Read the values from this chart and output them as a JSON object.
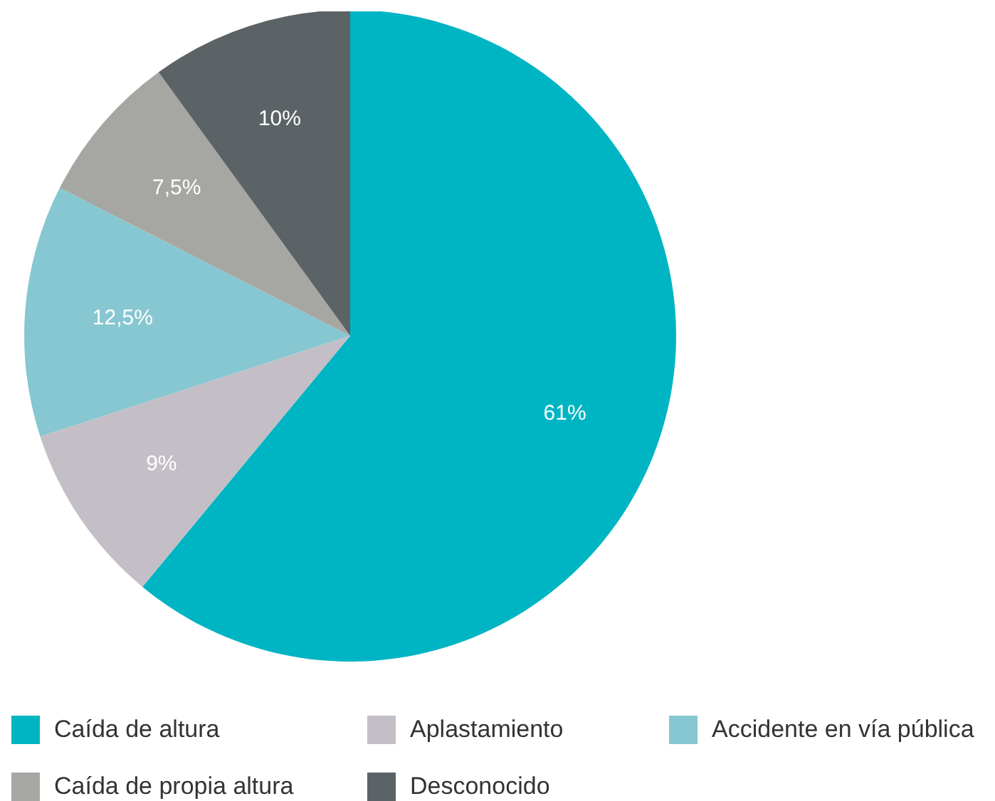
{
  "chart_data": {
    "type": "pie",
    "categories": [
      "Caída de altura",
      "Aplastamiento",
      "Accidente en vía pública",
      "Caída de propia altura",
      "Desconocido"
    ],
    "values": [
      61,
      9,
      12.5,
      7.5,
      10
    ],
    "value_labels": [
      "61%",
      "9%",
      "12,5%",
      "7,5%",
      "10%"
    ],
    "colors": [
      "#00b5c3",
      "#c4bfc6",
      "#86c7d1",
      "#a6a7a3",
      "#5c6366"
    ],
    "legend": "bottom"
  }
}
